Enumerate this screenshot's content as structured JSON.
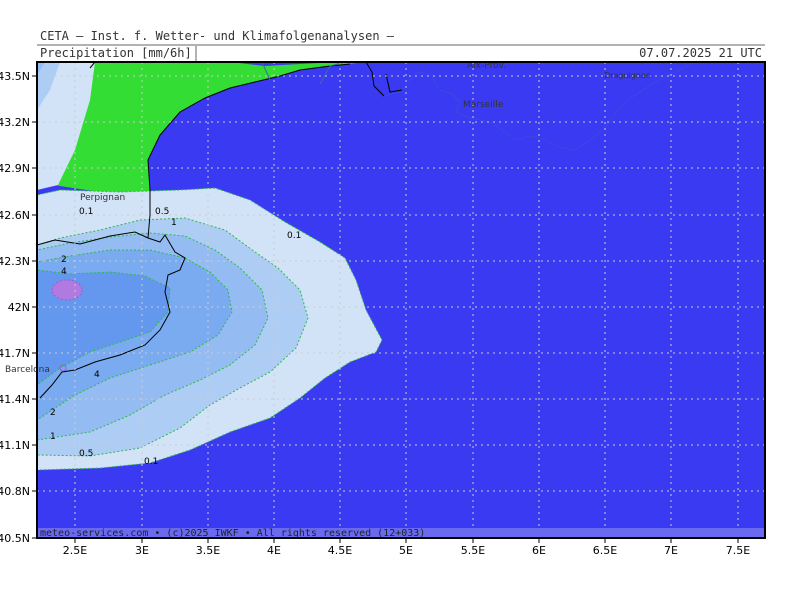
{
  "header": {
    "source": "CETA — Inst. f. Wetter- und Klimafolgenanalysen —",
    "field": "Precipitation [mm/6h]",
    "valid": "07.07.2025 21 UTC"
  },
  "footer": "meteo-services.com • (c)2025 IWKF • All rights reserved (12+033)",
  "axes": {
    "lon_labels": [
      "2.5E",
      "3E",
      "3.5E",
      "4E",
      "4.5E",
      "5E",
      "5.5E",
      "6E",
      "6.5E",
      "7E",
      "7.5E"
    ],
    "lat_labels": [
      "43.5N",
      "43.2N",
      "42.9N",
      "42.6N",
      "42.3N",
      "42N",
      "41.7N",
      "41.4N",
      "41.1N",
      "40.8N",
      "40.5N"
    ]
  },
  "cities": [
    {
      "name": "Perpignan"
    },
    {
      "name": "Barcelona"
    },
    {
      "name": "Marseille"
    },
    {
      "name": "Aix-Prov."
    },
    {
      "name": "Draguignan"
    }
  ],
  "contour_labels": [
    "0.1",
    "0.5",
    "1",
    "0.1",
    "2",
    "4",
    "4",
    "2",
    "1",
    "0.5",
    "0.1"
  ],
  "colors": {
    "sea": "#3a3af2",
    "land": "#33dd33",
    "precip_0_1": "#d2e3f8",
    "precip_0_5": "#aecdf4",
    "precip_1": "#94bcf2",
    "precip_2": "#7aaaf0",
    "precip_4": "#6398ee",
    "precip_max": "#b07ae0"
  }
}
